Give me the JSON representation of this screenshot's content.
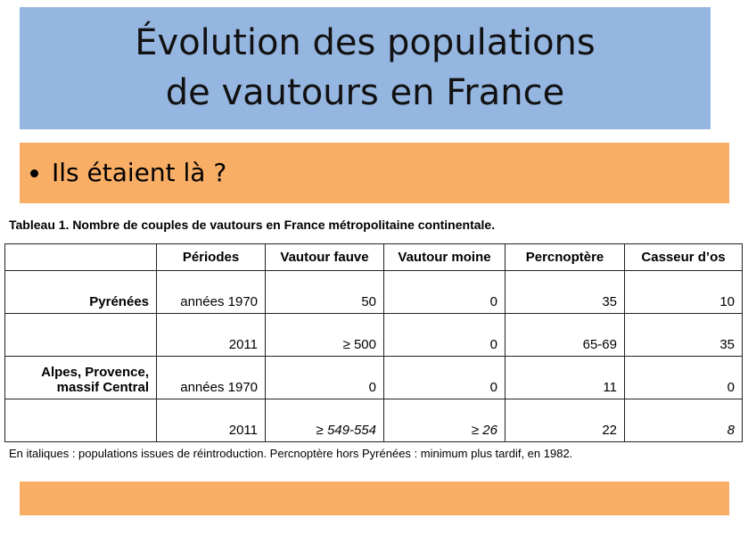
{
  "slide": {
    "title_lines": [
      "Évolution des populations",
      "de vautours en France"
    ],
    "bullet": "Ils étaient là ?"
  },
  "table": {
    "caption": "Tableau 1. Nombre de couples de vautours en France métropolitaine continentale.",
    "header": [
      "Périodes",
      "Vautour fauve",
      "Vautour moine",
      "Percnoptère",
      "Casseur d’os"
    ],
    "rows": [
      {
        "region": "Pyrénées",
        "period": "années 1970",
        "values": [
          50,
          0,
          35,
          10
        ]
      },
      {
        "period": "2011",
        "values": [
          "≥ 500",
          0,
          "65-69",
          35
        ]
      },
      {
        "region": "Alpes, Provence, massif Central",
        "period": "années 1970",
        "values": [
          0,
          0,
          11,
          0
        ]
      },
      {
        "period": "2011",
        "values": [
          "≥ 549-554",
          "≥ 26",
          22,
          8
        ]
      }
    ],
    "footnote": "En italiques : populations issues de réintroduction. Percnoptère hors Pyrénées : minimum plus tardif, en 1982."
  }
}
